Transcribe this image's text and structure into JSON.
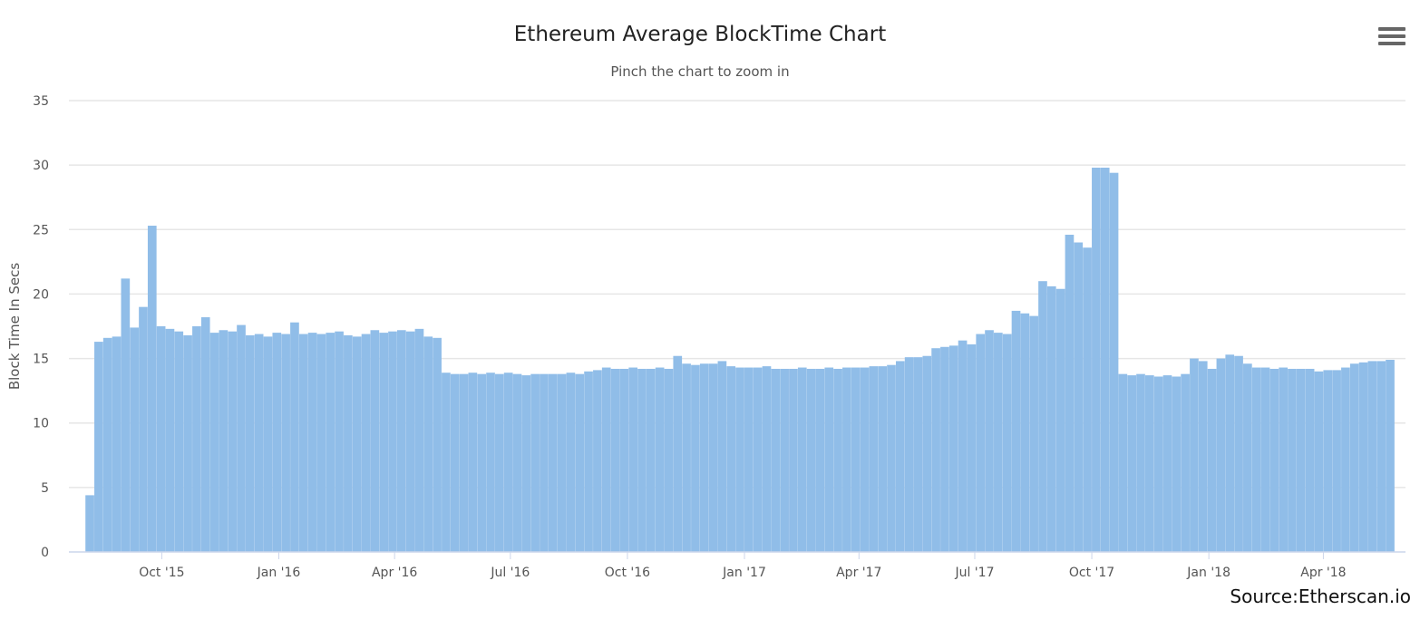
{
  "chart_data": {
    "type": "bar",
    "title": "Ethereum Average BlockTime Chart",
    "subtitle": "Pinch the chart to zoom in",
    "xlabel": "",
    "ylabel": "Block Time In Secs",
    "ylim": [
      0,
      35
    ],
    "yticks": [
      "0",
      "5",
      "10",
      "15",
      "20",
      "25",
      "30",
      "35"
    ],
    "xticks": [
      "Oct '15",
      "Jan '16",
      "Apr '16",
      "Jul '16",
      "Oct '16",
      "Jan '17",
      "Apr '17",
      "Jul '17",
      "Oct '17",
      "Jan '18",
      "Apr '18"
    ],
    "x_range": [
      "2015-07-30",
      "2018-05-27"
    ],
    "grid": true,
    "bar_color": "#90bde8",
    "series": [
      {
        "name": "Block Time",
        "step": "1 week",
        "categories": [
          "2015-08-02",
          "2015-08-09",
          "2015-08-16",
          "2015-08-23",
          "2015-08-30",
          "2015-09-06",
          "2015-09-13",
          "2015-09-20",
          "2015-09-27",
          "2015-10-04",
          "2015-10-11",
          "2015-10-18",
          "2015-10-25",
          "2015-11-01",
          "2015-11-08",
          "2015-11-15",
          "2015-11-22",
          "2015-11-29",
          "2015-12-06",
          "2015-12-13",
          "2015-12-20",
          "2015-12-27",
          "2016-01-03",
          "2016-01-10",
          "2016-01-17",
          "2016-01-24",
          "2016-01-31",
          "2016-02-07",
          "2016-02-14",
          "2016-02-21",
          "2016-02-28",
          "2016-03-06",
          "2016-03-13",
          "2016-03-20",
          "2016-03-27",
          "2016-04-03",
          "2016-04-10",
          "2016-04-17",
          "2016-04-24",
          "2016-05-01",
          "2016-05-08",
          "2016-05-15",
          "2016-05-22",
          "2016-05-29",
          "2016-06-05",
          "2016-06-12",
          "2016-06-19",
          "2016-06-26",
          "2016-07-03",
          "2016-07-10",
          "2016-07-17",
          "2016-07-24",
          "2016-07-31",
          "2016-08-07",
          "2016-08-14",
          "2016-08-21",
          "2016-08-28",
          "2016-09-04",
          "2016-09-11",
          "2016-09-18",
          "2016-09-25",
          "2016-10-02",
          "2016-10-09",
          "2016-10-16",
          "2016-10-23",
          "2016-10-30",
          "2016-11-06",
          "2016-11-13",
          "2016-11-20",
          "2016-11-27",
          "2016-12-04",
          "2016-12-11",
          "2016-12-18",
          "2016-12-25",
          "2017-01-01",
          "2017-01-08",
          "2017-01-15",
          "2017-01-22",
          "2017-01-29",
          "2017-02-05",
          "2017-02-12",
          "2017-02-19",
          "2017-02-26",
          "2017-03-05",
          "2017-03-12",
          "2017-03-19",
          "2017-03-26",
          "2017-04-02",
          "2017-04-09",
          "2017-04-16",
          "2017-04-23",
          "2017-04-30",
          "2017-05-07",
          "2017-05-14",
          "2017-05-21",
          "2017-05-28",
          "2017-06-04",
          "2017-06-11",
          "2017-06-18",
          "2017-06-25",
          "2017-07-02",
          "2017-07-09",
          "2017-07-16",
          "2017-07-23",
          "2017-07-30",
          "2017-08-06",
          "2017-08-13",
          "2017-08-20",
          "2017-08-27",
          "2017-09-03",
          "2017-09-10",
          "2017-09-17",
          "2017-09-24",
          "2017-10-01",
          "2017-10-08",
          "2017-10-15",
          "2017-10-22",
          "2017-10-29",
          "2017-11-05",
          "2017-11-12",
          "2017-11-19",
          "2017-11-26",
          "2017-12-03",
          "2017-12-10",
          "2017-12-17",
          "2017-12-24",
          "2017-12-31",
          "2018-01-07",
          "2018-01-14",
          "2018-01-21",
          "2018-01-28",
          "2018-02-04",
          "2018-02-11",
          "2018-02-18",
          "2018-02-25",
          "2018-03-04",
          "2018-03-11",
          "2018-03-18",
          "2018-03-25",
          "2018-04-01",
          "2018-04-08",
          "2018-04-15",
          "2018-04-22",
          "2018-04-29",
          "2018-05-06",
          "2018-05-13",
          "2018-05-20"
        ],
        "values": [
          4.4,
          16.3,
          16.6,
          16.7,
          21.2,
          17.4,
          19.0,
          25.3,
          17.5,
          17.3,
          17.1,
          16.8,
          17.5,
          18.2,
          17.0,
          17.2,
          17.1,
          17.6,
          16.8,
          16.9,
          16.7,
          17.0,
          16.9,
          17.8,
          16.9,
          17.0,
          16.9,
          17.0,
          17.1,
          16.8,
          16.7,
          16.9,
          17.2,
          17.0,
          17.1,
          17.2,
          17.1,
          17.3,
          16.7,
          16.6,
          13.9,
          13.8,
          13.8,
          13.9,
          13.8,
          13.9,
          13.8,
          13.9,
          13.8,
          13.7,
          13.8,
          13.8,
          13.8,
          13.8,
          13.9,
          13.8,
          14.0,
          14.1,
          14.3,
          14.2,
          14.2,
          14.3,
          14.2,
          14.2,
          14.3,
          14.2,
          15.2,
          14.6,
          14.5,
          14.6,
          14.6,
          14.8,
          14.4,
          14.3,
          14.3,
          14.3,
          14.4,
          14.2,
          14.2,
          14.2,
          14.3,
          14.2,
          14.2,
          14.3,
          14.2,
          14.3,
          14.3,
          14.3,
          14.4,
          14.4,
          14.5,
          14.8,
          15.1,
          15.1,
          15.2,
          15.8,
          15.9,
          16.0,
          16.4,
          16.1,
          16.9,
          17.2,
          17.0,
          16.9,
          18.7,
          18.5,
          18.3,
          21.0,
          20.6,
          20.4,
          24.6,
          24.0,
          23.6,
          29.8,
          29.8,
          29.4,
          13.8,
          13.7,
          13.8,
          13.7,
          13.6,
          13.7,
          13.6,
          13.8,
          15.0,
          14.8,
          14.2,
          15.0,
          15.3,
          15.2,
          14.6,
          14.3,
          14.3,
          14.2,
          14.3,
          14.2,
          14.2,
          14.2,
          14.0,
          14.1,
          14.1,
          14.3,
          14.6,
          14.7,
          14.8,
          14.8,
          14.9
        ]
      }
    ]
  },
  "toolbar": {
    "menu_icon": "hamburger-menu-icon"
  },
  "footer": {
    "source": "Source:Etherscan.io"
  }
}
